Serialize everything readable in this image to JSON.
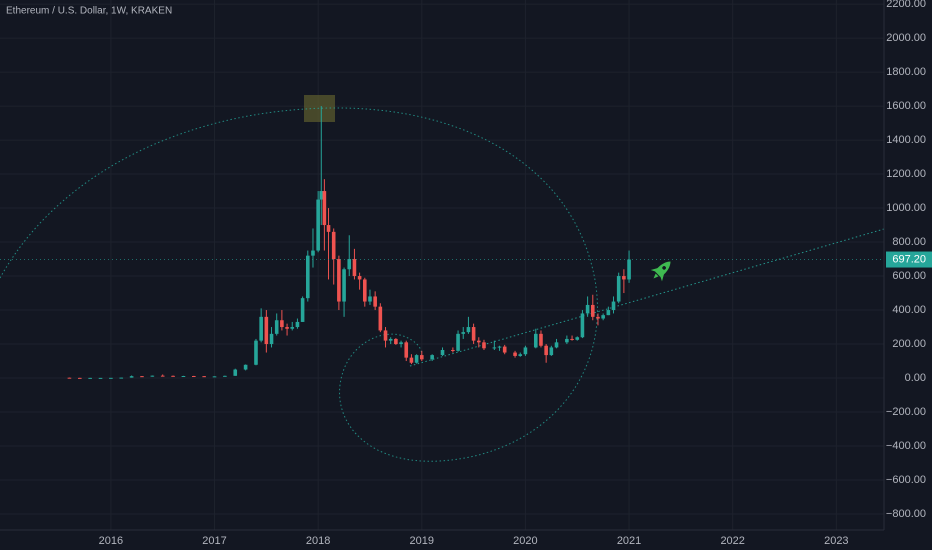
{
  "chart_data": {
    "type": "candlestick",
    "title": "Ethereum / U.S. Dollar, 1W, KRAKEN",
    "up_color": "#26a69a",
    "down_color": "#ef5350",
    "xlim": [
      2014.93,
      2023.46
    ],
    "xticks": [
      2016,
      2017,
      2018,
      2019,
      2020,
      2021,
      2022,
      2023
    ],
    "ylim": [
      -894,
      2224
    ],
    "yticks": [
      {
        "value": 2200,
        "label": "2200.00"
      },
      {
        "value": 2000,
        "label": "2000.00"
      },
      {
        "value": 1800,
        "label": "1800.00"
      },
      {
        "value": 1600,
        "label": "1600.00"
      },
      {
        "value": 1400,
        "label": "1400.00"
      },
      {
        "value": 1200,
        "label": "1200.00"
      },
      {
        "value": 1000,
        "label": "1000.00"
      },
      {
        "value": 800,
        "label": "800.00"
      },
      {
        "value": 600,
        "label": "600.00"
      },
      {
        "value": 400,
        "label": "400.00"
      },
      {
        "value": 200,
        "label": "200.00"
      },
      {
        "value": 0,
        "label": "0.00"
      },
      {
        "value": -200,
        "label": "−200.00"
      },
      {
        "value": -400,
        "label": "−400.00"
      },
      {
        "value": -600,
        "label": "−600.00"
      },
      {
        "value": -800,
        "label": "−800.00"
      }
    ],
    "grid": true,
    "last_price": {
      "value": 697.2,
      "label": "697.20"
    },
    "x": [
      2015.6,
      2015.7,
      2015.8,
      2015.9,
      2016.0,
      2016.1,
      2016.2,
      2016.3,
      2016.4,
      2016.5,
      2016.6,
      2016.7,
      2016.8,
      2016.9,
      2017.0,
      2017.1,
      2017.2,
      2017.3,
      2017.4,
      2017.45,
      2017.5,
      2017.55,
      2017.6,
      2017.65,
      2017.7,
      2017.75,
      2017.8,
      2017.85,
      2017.9,
      2017.95,
      2018.0,
      2018.03,
      2018.06,
      2018.1,
      2018.15,
      2018.2,
      2018.25,
      2018.3,
      2018.35,
      2018.4,
      2018.45,
      2018.5,
      2018.55,
      2018.6,
      2018.65,
      2018.7,
      2018.75,
      2018.8,
      2018.85,
      2018.9,
      2018.95,
      2019.0,
      2019.1,
      2019.2,
      2019.3,
      2019.35,
      2019.4,
      2019.45,
      2019.5,
      2019.55,
      2019.6,
      2019.7,
      2019.75,
      2019.8,
      2019.9,
      2019.95,
      2020.0,
      2020.1,
      2020.15,
      2020.2,
      2020.25,
      2020.3,
      2020.4,
      2020.45,
      2020.5,
      2020.55,
      2020.6,
      2020.65,
      2020.7,
      2020.75,
      2020.8,
      2020.85,
      2020.9,
      2020.95,
      2021.0
    ],
    "open": [
      2,
      1,
      0.9,
      0.9,
      0.9,
      1.2,
      2.5,
      11,
      8,
      14,
      13,
      11,
      12,
      11,
      8,
      10,
      13,
      50,
      78,
      220,
      360,
      200,
      260,
      340,
      300,
      290,
      300,
      330,
      470,
      720,
      750,
      1050,
      1100,
      900,
      860,
      700,
      450,
      640,
      700,
      600,
      580,
      450,
      480,
      420,
      280,
      220,
      230,
      200,
      210,
      120,
      90,
      135,
      110,
      135,
      165,
      160,
      260,
      270,
      300,
      220,
      210,
      175,
      180,
      185,
      150,
      130,
      140,
      180,
      260,
      190,
      135,
      180,
      210,
      230,
      225,
      240,
      380,
      430,
      360,
      350,
      370,
      400,
      450,
      600,
      580
    ],
    "high": [
      3,
      1.5,
      1.2,
      1,
      1.3,
      3,
      15,
      12,
      15,
      21,
      15,
      13,
      13,
      12,
      10,
      14,
      55,
      80,
      230,
      410,
      400,
      300,
      380,
      400,
      320,
      330,
      350,
      480,
      750,
      880,
      1100,
      1600,
      1170,
      1000,
      880,
      720,
      650,
      840,
      760,
      620,
      590,
      520,
      510,
      440,
      300,
      240,
      235,
      220,
      220,
      140,
      140,
      160,
      140,
      180,
      180,
      280,
      300,
      360,
      320,
      240,
      225,
      220,
      190,
      195,
      160,
      150,
      190,
      290,
      280,
      200,
      190,
      230,
      250,
      250,
      245,
      400,
      480,
      490,
      380,
      380,
      420,
      480,
      620,
      640,
      750
    ],
    "low": [
      0.5,
      0.4,
      0.4,
      0.8,
      0.9,
      1.1,
      2.4,
      7,
      8,
      12,
      10,
      9,
      10,
      7,
      8,
      10,
      13,
      45,
      75,
      210,
      150,
      180,
      250,
      280,
      250,
      280,
      290,
      330,
      450,
      650,
      740,
      900,
      750,
      580,
      550,
      400,
      360,
      600,
      580,
      520,
      420,
      430,
      400,
      270,
      180,
      200,
      195,
      180,
      100,
      82,
      85,
      100,
      100,
      130,
      150,
      155,
      230,
      260,
      200,
      180,
      165,
      165,
      160,
      140,
      120,
      125,
      130,
      175,
      180,
      90,
      130,
      175,
      200,
      220,
      220,
      235,
      360,
      340,
      310,
      340,
      370,
      380,
      440,
      500,
      560
    ],
    "close": [
      1,
      0.9,
      0.9,
      0.9,
      1.2,
      2.5,
      11,
      8,
      14,
      13,
      11,
      12,
      11,
      8,
      10,
      13,
      50,
      78,
      220,
      360,
      200,
      260,
      340,
      300,
      290,
      300,
      330,
      470,
      720,
      750,
      1050,
      1100,
      900,
      860,
      700,
      450,
      640,
      700,
      600,
      580,
      450,
      480,
      420,
      280,
      220,
      230,
      200,
      210,
      120,
      90,
      135,
      110,
      135,
      165,
      160,
      260,
      270,
      300,
      220,
      210,
      175,
      180,
      185,
      150,
      130,
      140,
      180,
      260,
      190,
      135,
      180,
      210,
      230,
      225,
      240,
      380,
      430,
      360,
      350,
      370,
      400,
      450,
      600,
      580,
      697.2
    ]
  }
}
